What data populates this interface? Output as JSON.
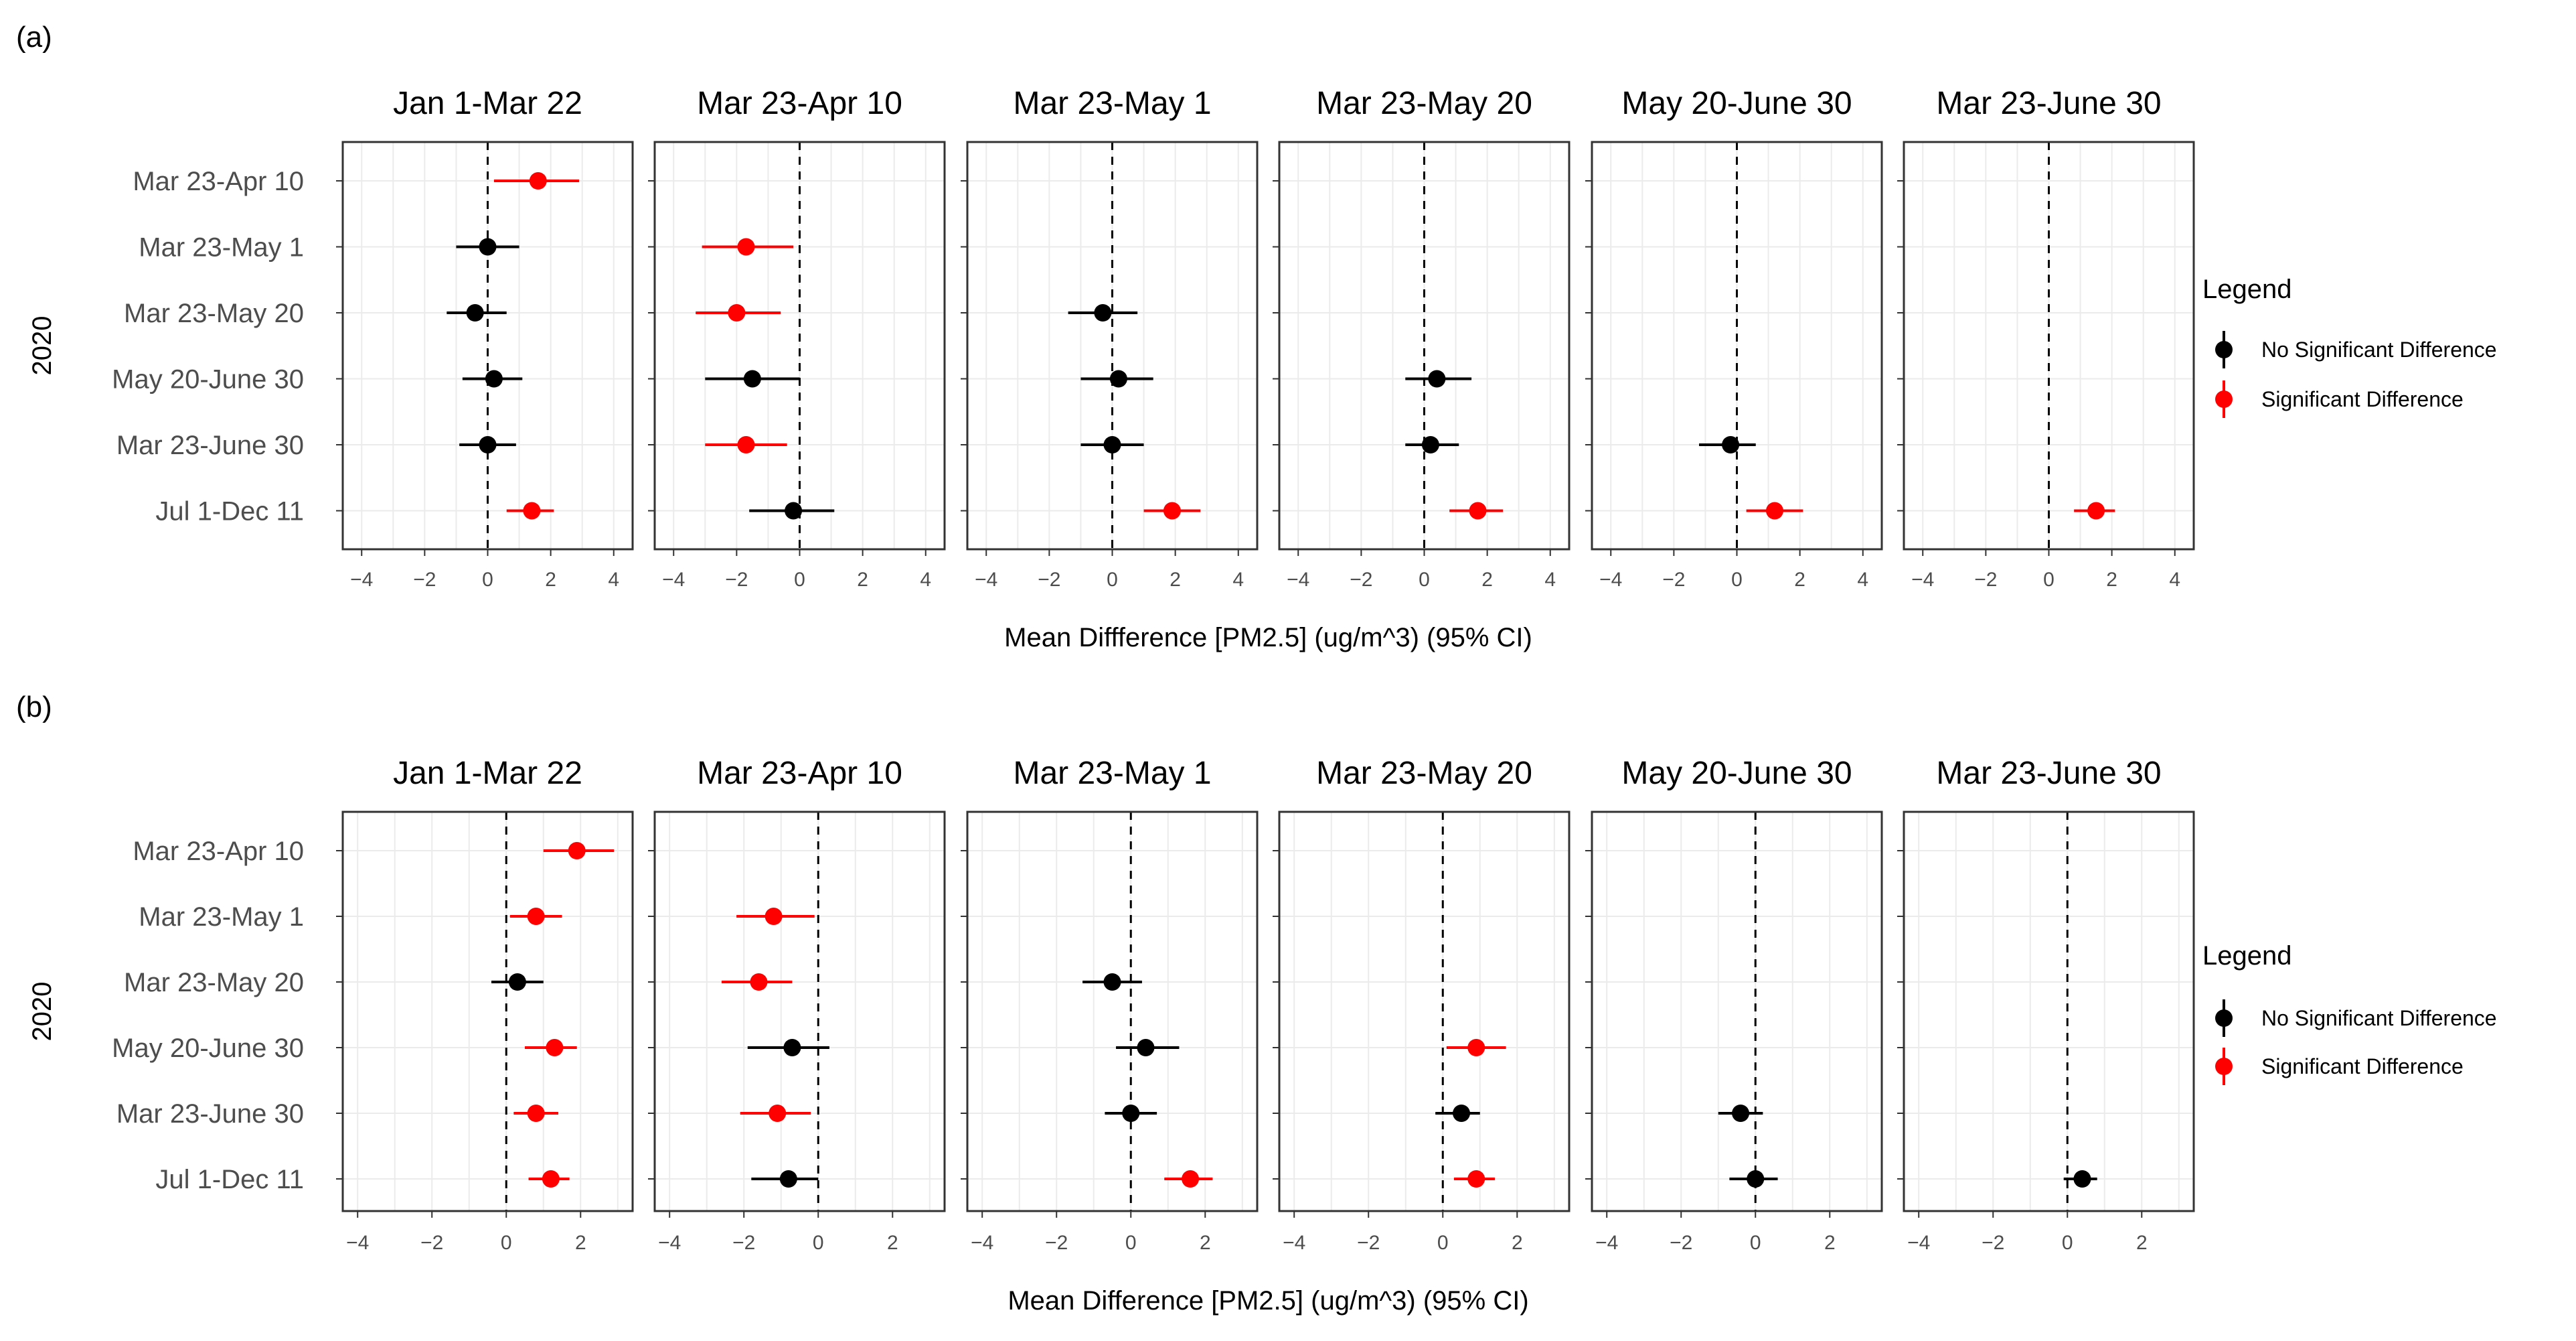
{
  "colors": {
    "not_significant": "#000000",
    "significant": "#ff0000"
  },
  "chart_data": [
    {
      "type": "forest",
      "panel_label": "(a)",
      "facets": [
        "Jan 1-Mar 22",
        "Mar 23-Apr 10",
        "Mar 23-May 1",
        "Mar 23-May 20",
        "May 20-June 30",
        "Mar 23-June 30"
      ],
      "rows": [
        "Mar 23-Apr 10",
        "Mar 23-May 1",
        "Mar 23-May 20",
        "May 20-June 30",
        "Mar 23-June 30",
        "Jul 1-Dec 11"
      ],
      "ylabel": "2020",
      "xlabel": "Mean Diffference [PM2.5] (ug/m^3) (95% CI)",
      "xlim": [
        -4.6,
        4.6
      ],
      "xticks": [
        -4,
        -2,
        0,
        2,
        4
      ],
      "legend": {
        "title": "Legend",
        "entries": [
          {
            "label": "No Significant Difference",
            "key": "not_significant"
          },
          {
            "label": "Significant Difference",
            "key": "significant"
          }
        ]
      },
      "points": [
        {
          "facet": 0,
          "row": 0,
          "mean": 1.6,
          "lo": 0.2,
          "hi": 2.9,
          "sig": true
        },
        {
          "facet": 0,
          "row": 1,
          "mean": 0.0,
          "lo": -1.0,
          "hi": 1.0,
          "sig": false
        },
        {
          "facet": 0,
          "row": 2,
          "mean": -0.4,
          "lo": -1.3,
          "hi": 0.6,
          "sig": false
        },
        {
          "facet": 0,
          "row": 3,
          "mean": 0.2,
          "lo": -0.8,
          "hi": 1.1,
          "sig": false
        },
        {
          "facet": 0,
          "row": 4,
          "mean": 0.0,
          "lo": -0.9,
          "hi": 0.9,
          "sig": false
        },
        {
          "facet": 0,
          "row": 5,
          "mean": 1.4,
          "lo": 0.6,
          "hi": 2.1,
          "sig": true
        },
        {
          "facet": 1,
          "row": 1,
          "mean": -1.7,
          "lo": -3.1,
          "hi": -0.2,
          "sig": true
        },
        {
          "facet": 1,
          "row": 2,
          "mean": -2.0,
          "lo": -3.3,
          "hi": -0.6,
          "sig": true
        },
        {
          "facet": 1,
          "row": 3,
          "mean": -1.5,
          "lo": -3.0,
          "hi": 0.0,
          "sig": false
        },
        {
          "facet": 1,
          "row": 4,
          "mean": -1.7,
          "lo": -3.0,
          "hi": -0.4,
          "sig": true
        },
        {
          "facet": 1,
          "row": 5,
          "mean": -0.2,
          "lo": -1.6,
          "hi": 1.1,
          "sig": false
        },
        {
          "facet": 2,
          "row": 2,
          "mean": -0.3,
          "lo": -1.4,
          "hi": 0.8,
          "sig": false
        },
        {
          "facet": 2,
          "row": 3,
          "mean": 0.2,
          "lo": -1.0,
          "hi": 1.3,
          "sig": false
        },
        {
          "facet": 2,
          "row": 4,
          "mean": 0.0,
          "lo": -1.0,
          "hi": 1.0,
          "sig": false
        },
        {
          "facet": 2,
          "row": 5,
          "mean": 1.9,
          "lo": 1.0,
          "hi": 2.8,
          "sig": true
        },
        {
          "facet": 3,
          "row": 3,
          "mean": 0.4,
          "lo": -0.6,
          "hi": 1.5,
          "sig": false
        },
        {
          "facet": 3,
          "row": 4,
          "mean": 0.2,
          "lo": -0.6,
          "hi": 1.1,
          "sig": false
        },
        {
          "facet": 3,
          "row": 5,
          "mean": 1.7,
          "lo": 0.8,
          "hi": 2.5,
          "sig": true
        },
        {
          "facet": 4,
          "row": 4,
          "mean": -0.2,
          "lo": -1.2,
          "hi": 0.6,
          "sig": false
        },
        {
          "facet": 4,
          "row": 5,
          "mean": 1.2,
          "lo": 0.3,
          "hi": 2.1,
          "sig": true
        },
        {
          "facet": 5,
          "row": 5,
          "mean": 1.5,
          "lo": 0.8,
          "hi": 2.1,
          "sig": true
        }
      ]
    },
    {
      "type": "forest",
      "panel_label": "(b)",
      "facets": [
        "Jan 1-Mar 22",
        "Mar 23-Apr 10",
        "Mar 23-May 1",
        "Mar 23-May 20",
        "May 20-June 30",
        "Mar 23-June 30"
      ],
      "rows": [
        "Mar 23-Apr 10",
        "Mar 23-May 1",
        "Mar 23-May 20",
        "May 20-June 30",
        "Mar 23-June 30",
        "Jul 1-Dec 11"
      ],
      "ylabel": "2020",
      "xlabel": "Mean Difference [PM2.5] (ug/m^3) (95% CI)",
      "xlim": [
        -4.4,
        3.4
      ],
      "xticks": [
        -4,
        -2,
        0,
        2
      ],
      "legend": {
        "title": "Legend",
        "entries": [
          {
            "label": "No Significant Difference",
            "key": "not_significant"
          },
          {
            "label": "Significant Difference",
            "key": "significant"
          }
        ]
      },
      "points": [
        {
          "facet": 0,
          "row": 0,
          "mean": 1.9,
          "lo": 1.0,
          "hi": 2.9,
          "sig": true
        },
        {
          "facet": 0,
          "row": 1,
          "mean": 0.8,
          "lo": 0.1,
          "hi": 1.5,
          "sig": true
        },
        {
          "facet": 0,
          "row": 2,
          "mean": 0.3,
          "lo": -0.4,
          "hi": 1.0,
          "sig": false
        },
        {
          "facet": 0,
          "row": 3,
          "mean": 1.3,
          "lo": 0.5,
          "hi": 1.9,
          "sig": true
        },
        {
          "facet": 0,
          "row": 4,
          "mean": 0.8,
          "lo": 0.2,
          "hi": 1.4,
          "sig": true
        },
        {
          "facet": 0,
          "row": 5,
          "mean": 1.2,
          "lo": 0.6,
          "hi": 1.7,
          "sig": true
        },
        {
          "facet": 1,
          "row": 1,
          "mean": -1.2,
          "lo": -2.2,
          "hi": -0.1,
          "sig": true
        },
        {
          "facet": 1,
          "row": 2,
          "mean": -1.6,
          "lo": -2.6,
          "hi": -0.7,
          "sig": true
        },
        {
          "facet": 1,
          "row": 3,
          "mean": -0.7,
          "lo": -1.9,
          "hi": 0.3,
          "sig": false
        },
        {
          "facet": 1,
          "row": 4,
          "mean": -1.1,
          "lo": -2.1,
          "hi": -0.2,
          "sig": true
        },
        {
          "facet": 1,
          "row": 5,
          "mean": -0.8,
          "lo": -1.8,
          "hi": 0.0,
          "sig": false
        },
        {
          "facet": 2,
          "row": 2,
          "mean": -0.5,
          "lo": -1.3,
          "hi": 0.3,
          "sig": false
        },
        {
          "facet": 2,
          "row": 3,
          "mean": 0.4,
          "lo": -0.4,
          "hi": 1.3,
          "sig": false
        },
        {
          "facet": 2,
          "row": 4,
          "mean": 0.0,
          "lo": -0.7,
          "hi": 0.7,
          "sig": false
        },
        {
          "facet": 2,
          "row": 5,
          "mean": 1.6,
          "lo": 0.9,
          "hi": 2.2,
          "sig": true
        },
        {
          "facet": 3,
          "row": 3,
          "mean": 0.9,
          "lo": 0.1,
          "hi": 1.7,
          "sig": true
        },
        {
          "facet": 3,
          "row": 4,
          "mean": 0.5,
          "lo": -0.2,
          "hi": 1.0,
          "sig": false
        },
        {
          "facet": 3,
          "row": 5,
          "mean": 0.9,
          "lo": 0.3,
          "hi": 1.4,
          "sig": true
        },
        {
          "facet": 4,
          "row": 4,
          "mean": -0.4,
          "lo": -1.0,
          "hi": 0.2,
          "sig": false
        },
        {
          "facet": 4,
          "row": 5,
          "mean": 0.0,
          "lo": -0.7,
          "hi": 0.6,
          "sig": false
        },
        {
          "facet": 5,
          "row": 5,
          "mean": 0.4,
          "lo": -0.1,
          "hi": 0.8,
          "sig": false
        }
      ]
    }
  ]
}
